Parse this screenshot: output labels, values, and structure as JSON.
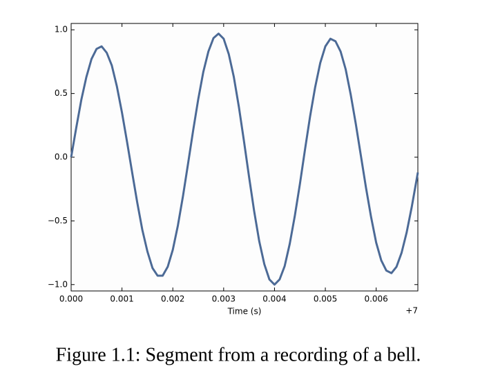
{
  "chart_data": {
    "type": "line",
    "xlabel": "Time (s)",
    "x_offset_label": "+7",
    "caption": "Figure 1.1: Segment from a recording of a bell.",
    "x": [
      0,
      0.0001,
      0.0002,
      0.0003,
      0.0004,
      0.0005,
      0.0006,
      0.0007,
      0.0008,
      0.0009,
      0.001,
      0.0011,
      0.0012,
      0.0013,
      0.0014,
      0.0015,
      0.0016,
      0.0017,
      0.0018,
      0.0019,
      0.002,
      0.0021,
      0.0022,
      0.0023,
      0.0024,
      0.0025,
      0.0026,
      0.0027,
      0.0028,
      0.0029,
      0.003,
      0.0031,
      0.0032,
      0.0033,
      0.0034,
      0.0035,
      0.0036,
      0.0037,
      0.0038,
      0.0039,
      0.004,
      0.0041,
      0.0042,
      0.0043,
      0.0044,
      0.0045,
      0.0046,
      0.0047,
      0.0048,
      0.0049,
      0.005,
      0.0051,
      0.0052,
      0.0053,
      0.0054,
      0.0055,
      0.0056,
      0.0057,
      0.0058,
      0.0059,
      0.006,
      0.0061,
      0.0062,
      0.0063,
      0.0064,
      0.0065,
      0.0066,
      0.0067,
      0.0068,
      0.00682
    ],
    "series": [
      {
        "color": "#4c6a96",
        "values": [
          0,
          0.23,
          0.45,
          0.63,
          0.77,
          0.85,
          0.87,
          0.82,
          0.72,
          0.555,
          0.35,
          0.12,
          -0.12,
          -0.355,
          -0.57,
          -0.74,
          -0.87,
          -0.93,
          -0.93,
          -0.86,
          -0.726,
          -0.536,
          -0.305,
          -0.05,
          0.21,
          0.455,
          0.67,
          0.83,
          0.935,
          0.97,
          0.93,
          0.81,
          0.63,
          0.394,
          0.125,
          -0.155,
          -0.424,
          -0.66,
          -0.84,
          -0.96,
          -1.0,
          -0.96,
          -0.855,
          -0.68,
          -0.46,
          -0.21,
          0.06,
          0.32,
          0.55,
          0.74,
          0.87,
          0.93,
          0.91,
          0.83,
          0.69,
          0.49,
          0.26,
          0.01,
          -0.24,
          -0.47,
          -0.67,
          -0.81,
          -0.89,
          -0.91,
          -0.86,
          -0.75,
          -0.59,
          -0.39,
          -0.165,
          -0.12
        ]
      }
    ],
    "xlim": [
      0,
      0.00682
    ],
    "ylim": [
      -1.05,
      1.05
    ],
    "xticks": [
      {
        "value": 0,
        "label": "0.000"
      },
      {
        "value": 0.001,
        "label": "0.001"
      },
      {
        "value": 0.002,
        "label": "0.002"
      },
      {
        "value": 0.003,
        "label": "0.003"
      },
      {
        "value": 0.004,
        "label": "0.004"
      },
      {
        "value": 0.005,
        "label": "0.005"
      },
      {
        "value": 0.006,
        "label": "0.006"
      }
    ],
    "yticks": [
      {
        "value": 1.0,
        "label": "1.0"
      },
      {
        "value": 0.5,
        "label": "0.5"
      },
      {
        "value": 0,
        "label": "0.0"
      },
      {
        "value": -0.5,
        "label": "−0.5"
      },
      {
        "value": -1.0,
        "label": "−1.0"
      }
    ],
    "grid": false
  }
}
